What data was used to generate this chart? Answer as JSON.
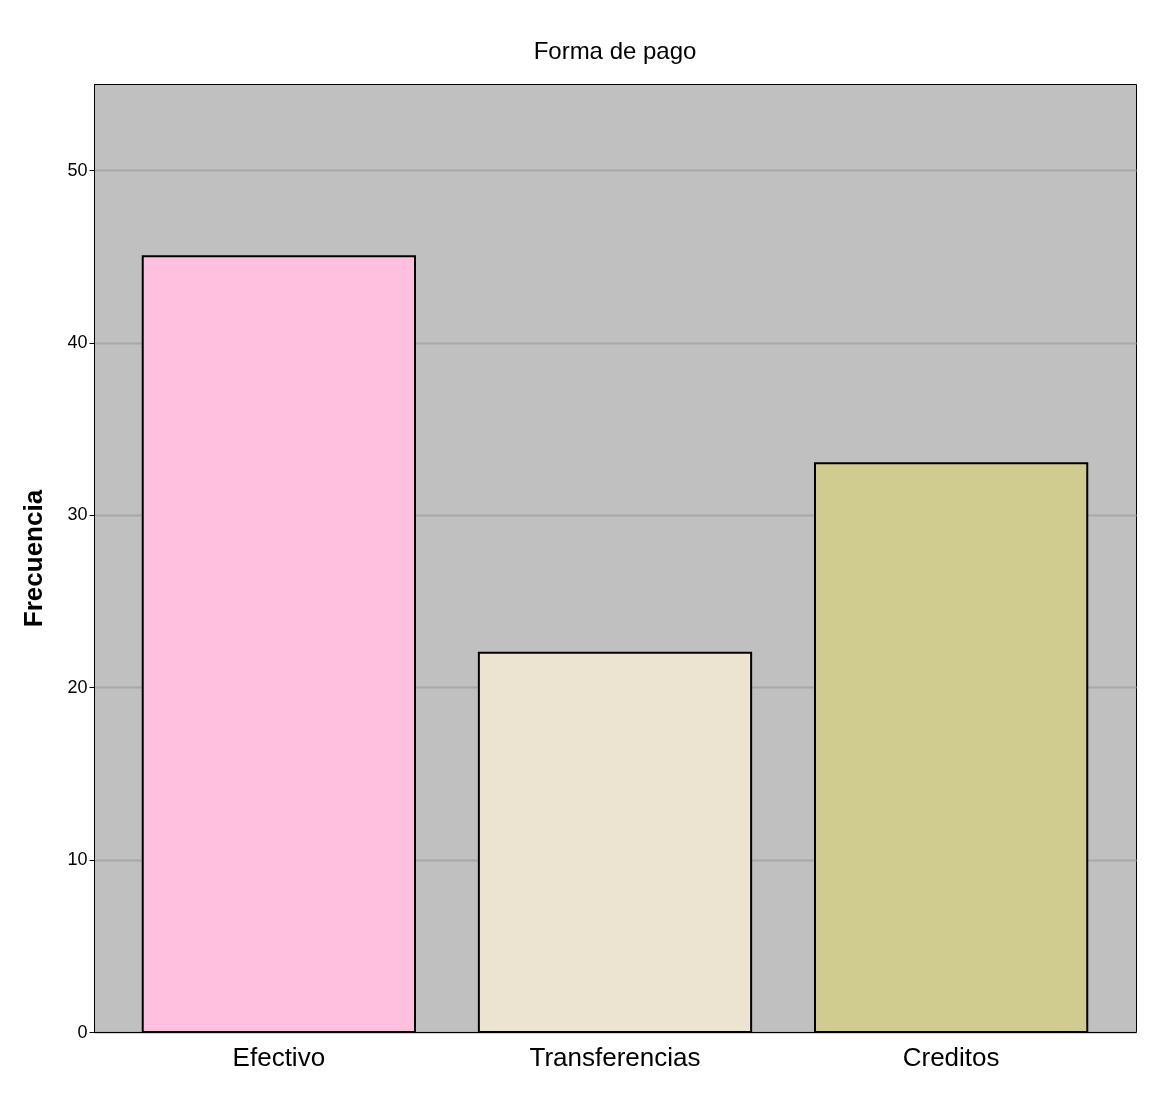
{
  "chart_data": {
    "type": "bar",
    "title": "Forma de pago",
    "ylabel": "Frecuencia",
    "categories": [
      "Efectivo",
      "Transferencias",
      "Creditos"
    ],
    "values": [
      45,
      22,
      33
    ],
    "colors": [
      "#ffc0e0",
      "#ece4d0",
      "#d0cc90"
    ],
    "ylim": [
      0,
      55
    ],
    "yticks": [
      0,
      10,
      20,
      30,
      40,
      50
    ],
    "grid": "y"
  }
}
